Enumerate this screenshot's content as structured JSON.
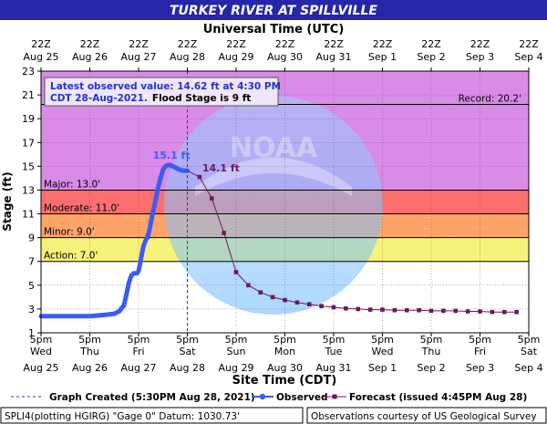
{
  "chart_data": {
    "type": "line",
    "title": "TURKEY RIVER AT SPILLVILLE",
    "top_axis_title": "Universal Time (UTC)",
    "xlabel": "Site Time (CDT)",
    "ylabel": "Stage (ft)",
    "ylim": [
      1,
      23
    ],
    "y_ticks": [
      1,
      3,
      5,
      7,
      9,
      11,
      13,
      15,
      17,
      19,
      21,
      23
    ],
    "grid": true,
    "top_ticks": [
      {
        "hour": "22Z",
        "date": "Aug 25"
      },
      {
        "hour": "22Z",
        "date": "Aug 26"
      },
      {
        "hour": "22Z",
        "date": "Aug 27"
      },
      {
        "hour": "22Z",
        "date": "Aug 28"
      },
      {
        "hour": "22Z",
        "date": "Aug 29"
      },
      {
        "hour": "22Z",
        "date": "Aug 30"
      },
      {
        "hour": "22Z",
        "date": "Aug 31"
      },
      {
        "hour": "22Z",
        "date": "Sep 1"
      },
      {
        "hour": "22Z",
        "date": "Sep 2"
      },
      {
        "hour": "22Z",
        "date": "Sep 3"
      },
      {
        "hour": "22Z",
        "date": "Sep 4"
      }
    ],
    "bottom_ticks": [
      {
        "time": "5pm",
        "day": "Wed",
        "date": "Aug 25"
      },
      {
        "time": "5pm",
        "day": "Thu",
        "date": "Aug 26"
      },
      {
        "time": "5pm",
        "day": "Fri",
        "date": "Aug 27"
      },
      {
        "time": "5pm",
        "day": "Sat",
        "date": "Aug 28"
      },
      {
        "time": "5pm",
        "day": "Sun",
        "date": "Aug 29"
      },
      {
        "time": "5pm",
        "day": "Mon",
        "date": "Aug 30"
      },
      {
        "time": "5pm",
        "day": "Tue",
        "date": "Aug 31"
      },
      {
        "time": "5pm",
        "day": "Wed",
        "date": "Sep 1"
      },
      {
        "time": "5pm",
        "day": "Thu",
        "date": "Sep 2"
      },
      {
        "time": "5pm",
        "day": "Fri",
        "date": "Sep 3"
      },
      {
        "time": "5pm",
        "day": "Sat",
        "date": "Sep 4"
      }
    ],
    "x_range_days": [
      0,
      10
    ],
    "bands": [
      {
        "name": "Record",
        "from": 13,
        "to": 23,
        "color": "#d98be8"
      },
      {
        "name": "Major",
        "from": 11,
        "to": 13,
        "color": "#fc6f6f"
      },
      {
        "name": "Moderate",
        "from": 9,
        "to": 11,
        "color": "#ffa468"
      },
      {
        "name": "Minor",
        "from": 7,
        "to": 9,
        "color": "#f7f279"
      },
      {
        "name": "Action",
        "from": 1,
        "to": 7,
        "color": "#ffffff"
      }
    ],
    "thresholds": [
      {
        "label": "Record: 20.2'",
        "value": 20.2,
        "position": "right"
      },
      {
        "label": "Major: 13.0'",
        "value": 13.0,
        "position": "left"
      },
      {
        "label": "Moderate: 11.0'",
        "value": 11.0,
        "position": "left"
      },
      {
        "label": "Minor: 9.0'",
        "value": 9.0,
        "position": "left"
      },
      {
        "label": "Action: 7.0'",
        "value": 7.0,
        "position": "left"
      }
    ],
    "graph_created_day": 3.0,
    "series": [
      {
        "name": "Observed",
        "color": "#3a5cf5",
        "x": [
          0.0,
          0.5,
          1.0,
          1.3,
          1.5,
          1.6,
          1.7,
          1.75,
          1.8,
          1.85,
          1.9,
          1.93,
          1.97,
          2.0,
          2.1,
          2.15,
          2.18,
          2.22,
          2.27,
          2.32,
          2.36,
          2.4,
          2.45,
          2.5,
          2.55,
          2.6,
          2.65,
          2.7,
          2.75,
          2.8,
          2.85,
          2.9,
          2.95,
          3.0
        ],
        "y": [
          2.4,
          2.4,
          2.4,
          2.5,
          2.6,
          2.8,
          3.3,
          4.2,
          5.2,
          5.8,
          6.0,
          6.0,
          6.0,
          6.2,
          8.3,
          8.8,
          9.0,
          9.6,
          10.6,
          11.6,
          12.4,
          13.2,
          14.0,
          14.7,
          15.0,
          15.1,
          15.1,
          15.0,
          14.9,
          14.8,
          14.7,
          14.65,
          14.62,
          14.62
        ]
      },
      {
        "name": "Forecast (issued 4:45PM Aug 28)",
        "color": "#6b1a5a",
        "x": [
          3.0,
          3.25,
          3.5,
          3.75,
          4.0,
          4.25,
          4.5,
          4.75,
          5.0,
          5.25,
          5.5,
          5.75,
          6.0,
          6.25,
          6.5,
          6.75,
          7.0,
          7.25,
          7.5,
          7.75,
          8.0,
          8.25,
          8.5,
          8.75,
          9.0,
          9.25,
          9.5,
          9.75
        ],
        "y": [
          14.62,
          14.1,
          12.3,
          9.4,
          6.1,
          5.0,
          4.4,
          4.0,
          3.75,
          3.55,
          3.4,
          3.25,
          3.15,
          3.05,
          3.0,
          2.95,
          2.95,
          2.9,
          2.9,
          2.9,
          2.85,
          2.85,
          2.85,
          2.8,
          2.8,
          2.75,
          2.75,
          2.75
        ]
      }
    ],
    "point_labels": [
      {
        "text": "15.1 ft",
        "x": 2.6,
        "y": 15.1,
        "color": "#3a5cf5"
      },
      {
        "text": "14.1 ft",
        "x": 3.25,
        "y": 14.1,
        "color": "#6b1a5a"
      }
    ],
    "info_box": {
      "line1": "Latest observed value: 14.62 ft at 4:30 PM",
      "line2_part1": "CDT 28-Aug-2021.",
      "line2_part2": "Flood Stage is 9 ft"
    },
    "legend": [
      {
        "label": "Graph Created (5:30PM Aug 28, 2021)",
        "kind": "dashed"
      },
      {
        "label": "Observed",
        "kind": "observed"
      },
      {
        "label": "Forecast (issued 4:45PM Aug 28)",
        "kind": "forecast"
      }
    ],
    "footer_left": "SPLI4(plotting HGIRG) \"Gage 0\" Datum: 1030.73'",
    "footer_right": "Observations courtesy of US Geological Survey",
    "watermark": "NATIONAL OCEANIC AND ATMOSPHERIC ADMINISTRATION · U.S. DEPARTMENT OF COMMERCE · NOAA",
    "colors": {
      "title_bar": "#2626a8",
      "observed": "#3a5cf5",
      "forecast": "#6b1a5a",
      "info_box_bg": "#f0e6f8",
      "info_text": "#2233cc"
    }
  }
}
